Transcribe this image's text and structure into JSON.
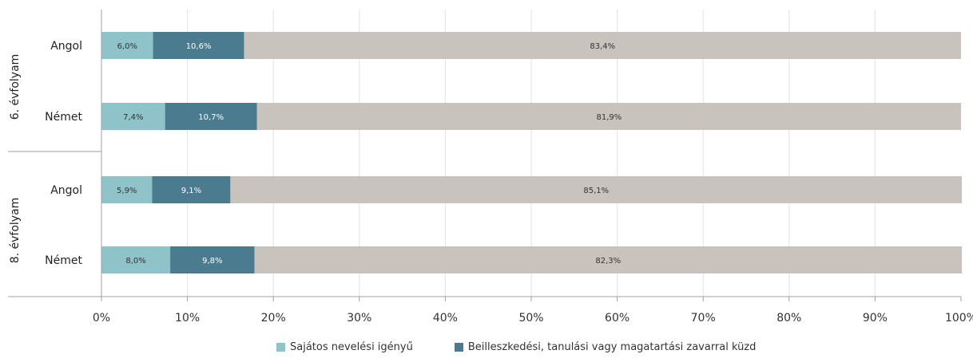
{
  "chart_data": {
    "type": "bar",
    "orientation": "horizontal",
    "stacked": true,
    "grid": true,
    "legend_position": "bottom",
    "xlim": [
      0,
      100
    ],
    "x_tick_labels": [
      "0%",
      "10%",
      "20%",
      "30%",
      "40%",
      "50%",
      "60%",
      "70%",
      "80%",
      "90%",
      "100%"
    ],
    "groups": [
      {
        "label": "6. évfolyam",
        "categories": [
          "Angol",
          "Német"
        ]
      },
      {
        "label": "8. évfolyam",
        "categories": [
          "Angol",
          "Német"
        ]
      }
    ],
    "series": [
      {
        "name": "Sajátos nevelési igényű",
        "color": "#8ec3c9",
        "values": [
          6.0,
          7.4,
          5.9,
          8.0
        ],
        "labels": [
          "6,0%",
          "7,4%",
          "5,9%",
          "8,0%"
        ]
      },
      {
        "name": "Beilleszkedési, tanulási vagy magatartási zavarral küzd",
        "color": "#4a7b8e",
        "values": [
          10.6,
          10.7,
          9.1,
          9.8
        ],
        "labels": [
          "10,6%",
          "10,7%",
          "9,1%",
          "9,8%"
        ]
      },
      {
        "color": "#c8c3bd",
        "values": [
          83.4,
          81.9,
          85.1,
          82.3
        ],
        "labels": [
          "83,4%",
          "81,9%",
          "85,1%",
          "82,3%"
        ]
      }
    ]
  }
}
